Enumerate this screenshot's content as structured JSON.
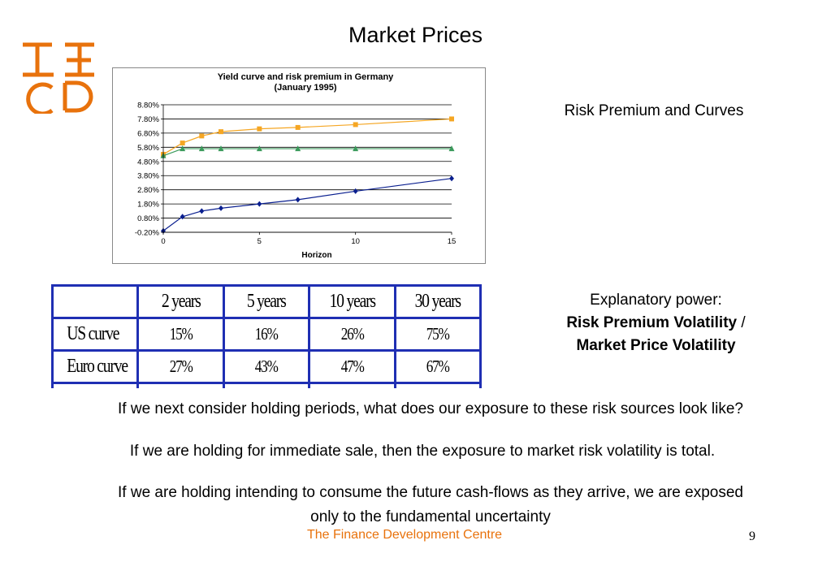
{
  "slide": {
    "title": "Market Prices",
    "side_heading": "Risk Premium and Curves",
    "explanatory_intro": "Explanatory power:",
    "explanatory_bold": "Risk Premium Volatility",
    "explanatory_sep": " /",
    "explanatory_bold2": "Market Price Volatility",
    "paragraphs": [
      "If we next consider holding periods, what does our exposure to these risk sources look like?",
      "If we are holding for immediate sale, then the exposure to market risk volatility is total.",
      "If we are holding intending to consume the future cash-flows as they arrive, we are exposed only to the fundamental uncertainty"
    ],
    "footer": "The Finance Development Centre",
    "page_number": "9"
  },
  "logo": {
    "colors": {
      "orange": "#e8720c"
    }
  },
  "table": {
    "headers": [
      "",
      "2 years",
      "5 years",
      "10 years",
      "30 years"
    ],
    "rows": [
      {
        "label": "US curve",
        "values": [
          "15%",
          "16%",
          "26%",
          "75%"
        ]
      },
      {
        "label": "Euro curve",
        "values": [
          "27%",
          "43%",
          "47%",
          "67%"
        ]
      }
    ],
    "border_color": "#1f2fb3"
  },
  "chart_data": {
    "type": "line",
    "title": "Yield curve and risk premium in Germany",
    "subtitle": "(January 1995)",
    "xlabel": "Horizon",
    "ylabel": "",
    "xlim": [
      0,
      15
    ],
    "ylim": [
      -0.2,
      8.8
    ],
    "x_ticks": [
      0,
      5,
      10,
      15
    ],
    "y_ticks": [
      8.8,
      7.8,
      6.8,
      5.8,
      4.8,
      3.8,
      2.8,
      1.8,
      0.8,
      -0.2
    ],
    "y_tick_labels": [
      "8.80%",
      "7.80%",
      "6.80%",
      "5.80%",
      "4.80%",
      "3.80%",
      "2.80%",
      "1.80%",
      "0.80%",
      "-0.20%"
    ],
    "grid": true,
    "series": [
      {
        "marker": "square",
        "color": "#f5a623",
        "x": [
          0,
          1,
          2,
          3,
          5,
          7,
          10,
          15
        ],
        "y": [
          5.3,
          6.1,
          6.6,
          6.9,
          7.1,
          7.2,
          7.4,
          7.8
        ]
      },
      {
        "marker": "triangle",
        "color": "#3a9a5b",
        "x": [
          0,
          1,
          2,
          3,
          5,
          7,
          10,
          15
        ],
        "y": [
          5.2,
          5.7,
          5.7,
          5.7,
          5.7,
          5.7,
          5.7,
          5.7
        ]
      },
      {
        "marker": "diamond",
        "color": "#0a1f8f",
        "x": [
          0,
          1,
          2,
          3,
          5,
          7,
          10,
          15
        ],
        "y": [
          -0.1,
          0.9,
          1.3,
          1.5,
          1.8,
          2.1,
          2.7,
          3.6
        ]
      }
    ]
  }
}
